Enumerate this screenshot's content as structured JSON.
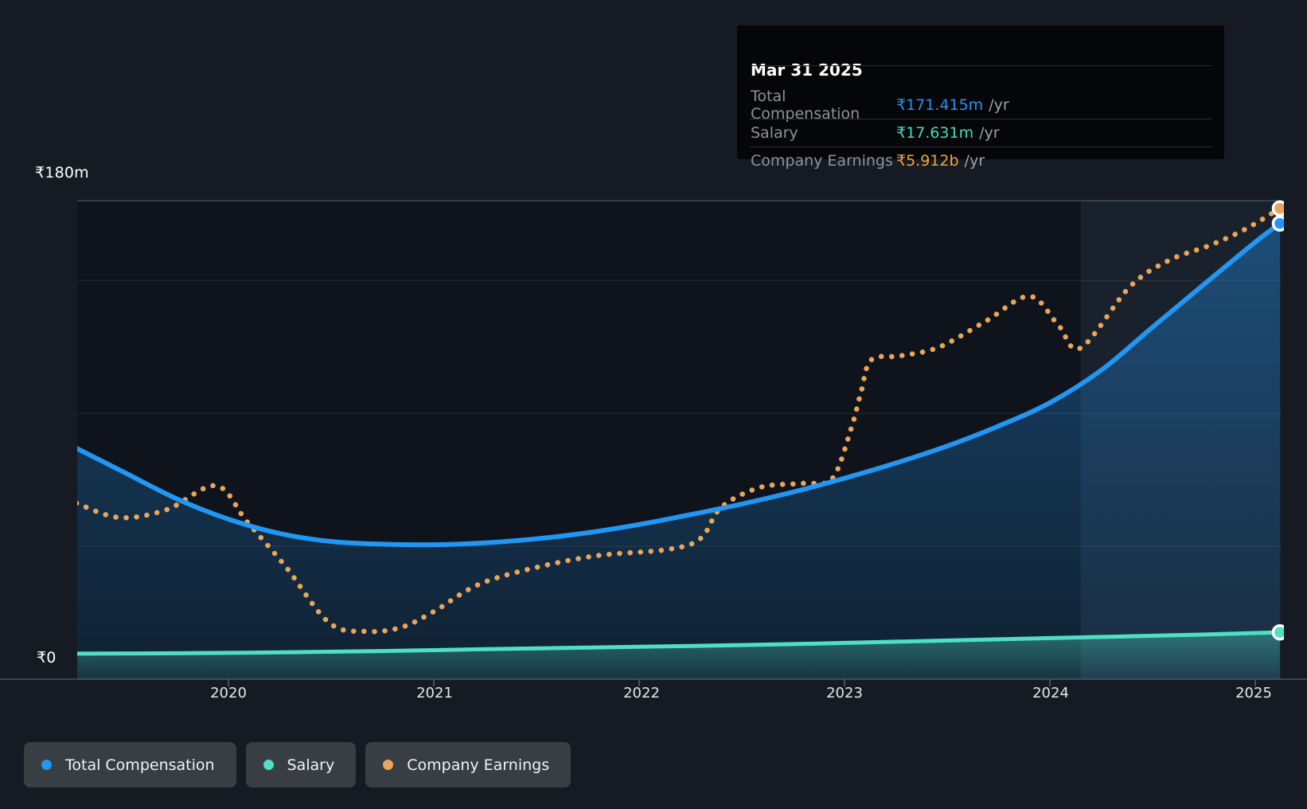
{
  "colors": {
    "page_background": "#161b23",
    "plot_background": "#0f141c",
    "total_compensation": "#2196f3",
    "salary": "#4fe0c4",
    "company_earnings": "#e9a65a",
    "tooltip_background": "#050608",
    "gridline": "rgba(255,255,255,0.10)",
    "axis_line": "#3c434c"
  },
  "tooltip": {
    "date": "Mar 31 2025",
    "rows": [
      {
        "label": "Total Compensation",
        "value": "₹171.415m",
        "suffix": "/yr",
        "color": "#2196f3"
      },
      {
        "label": "Salary",
        "value": "₹17.631m",
        "suffix": "/yr",
        "color": "#43dcc0"
      },
      {
        "label": "Company Earnings",
        "value": "₹5.912b",
        "suffix": "/yr",
        "color": "#efa63f"
      }
    ]
  },
  "y_axis": {
    "top_label": "₹180m",
    "bottom_label": "₹0"
  },
  "x_axis": {
    "ticks": [
      "2020",
      "2021",
      "2022",
      "2023",
      "2024",
      "2025"
    ]
  },
  "legend": [
    {
      "label": "Total Compensation",
      "color": "#2196f3"
    },
    {
      "label": "Salary",
      "color": "#4fe0c4"
    },
    {
      "label": "Company Earnings",
      "color": "#e9a65a"
    }
  ],
  "chart_data": {
    "type": "line",
    "title": "",
    "x_axis": {
      "unit": "year",
      "ticks": [
        2020,
        2021,
        2022,
        2023,
        2024,
        2025
      ],
      "range": [
        2019.26,
        2025.13
      ]
    },
    "y_axis_main": {
      "unit": "₹m",
      "range": [
        0,
        180
      ],
      "top_label": "₹180m",
      "bottom_label": "₹0",
      "gridline_values": [
        0,
        50,
        100,
        150,
        180
      ]
    },
    "y_axis_earnings": {
      "unit": "₹b",
      "range": [
        0,
        6.01
      ]
    },
    "highlight_band_from_year": 2024.15,
    "grid": true,
    "legend_position": "bottom-left",
    "series": [
      {
        "name": "Total Compensation",
        "unit": "₹m",
        "style": "solid",
        "color": "#2196f3",
        "area": true,
        "end_value_label": "₹171.415m /yr",
        "points": [
          [
            2019.26,
            86.9
          ],
          [
            2019.5,
            77.5
          ],
          [
            2019.75,
            67.8
          ],
          [
            2020.0,
            60.2
          ],
          [
            2020.25,
            54.8
          ],
          [
            2020.5,
            51.8
          ],
          [
            2020.75,
            50.8
          ],
          [
            2021.0,
            50.6
          ],
          [
            2021.25,
            51.3
          ],
          [
            2021.5,
            52.8
          ],
          [
            2021.75,
            55.1
          ],
          [
            2022.0,
            58.2
          ],
          [
            2022.25,
            61.9
          ],
          [
            2022.5,
            65.9
          ],
          [
            2022.75,
            70.4
          ],
          [
            2023.0,
            75.6
          ],
          [
            2023.25,
            81.3
          ],
          [
            2023.5,
            87.7
          ],
          [
            2023.75,
            95.2
          ],
          [
            2024.0,
            104.0
          ],
          [
            2024.25,
            116.2
          ],
          [
            2024.5,
            132.4
          ],
          [
            2024.75,
            148.5
          ],
          [
            2025.0,
            164.4
          ],
          [
            2025.12,
            171.415
          ]
        ]
      },
      {
        "name": "Salary",
        "unit": "₹m",
        "style": "solid",
        "color": "#4fe0c4",
        "area": true,
        "end_value_label": "₹17.631m /yr",
        "points": [
          [
            2019.26,
            9.6
          ],
          [
            2019.75,
            9.75
          ],
          [
            2020.25,
            10.1
          ],
          [
            2020.75,
            10.6
          ],
          [
            2021.25,
            11.3
          ],
          [
            2021.75,
            11.9
          ],
          [
            2022.25,
            12.5
          ],
          [
            2022.75,
            13.2
          ],
          [
            2023.25,
            14.1
          ],
          [
            2023.75,
            15.0
          ],
          [
            2024.25,
            15.9
          ],
          [
            2024.75,
            16.8
          ],
          [
            2025.12,
            17.631
          ]
        ]
      },
      {
        "name": "Company Earnings",
        "unit": "₹b",
        "style": "dotted",
        "color": "#e9a65a",
        "area": false,
        "end_value_label": "₹5.912b /yr",
        "points": [
          [
            2019.26,
            2.21
          ],
          [
            2019.47,
            2.03
          ],
          [
            2019.7,
            2.13
          ],
          [
            2019.94,
            2.43
          ],
          [
            2020.09,
            1.98
          ],
          [
            2020.28,
            1.41
          ],
          [
            2020.49,
            0.71
          ],
          [
            2020.67,
            0.6
          ],
          [
            2020.84,
            0.65
          ],
          [
            2021.0,
            0.85
          ],
          [
            2021.21,
            1.18
          ],
          [
            2021.46,
            1.38
          ],
          [
            2021.79,
            1.55
          ],
          [
            2022.14,
            1.63
          ],
          [
            2022.3,
            1.77
          ],
          [
            2022.4,
            2.16
          ],
          [
            2022.59,
            2.41
          ],
          [
            2022.8,
            2.46
          ],
          [
            2022.94,
            2.52
          ],
          [
            2023.03,
            3.13
          ],
          [
            2023.08,
            3.6
          ],
          [
            2023.13,
            4.01
          ],
          [
            2023.27,
            4.06
          ],
          [
            2023.46,
            4.17
          ],
          [
            2023.69,
            4.5
          ],
          [
            2023.9,
            4.81
          ],
          [
            2024.04,
            4.45
          ],
          [
            2024.15,
            4.16
          ],
          [
            2024.39,
            4.93
          ],
          [
            2024.58,
            5.26
          ],
          [
            2024.78,
            5.45
          ],
          [
            2024.95,
            5.65
          ],
          [
            2025.12,
            5.912
          ]
        ]
      }
    ]
  }
}
